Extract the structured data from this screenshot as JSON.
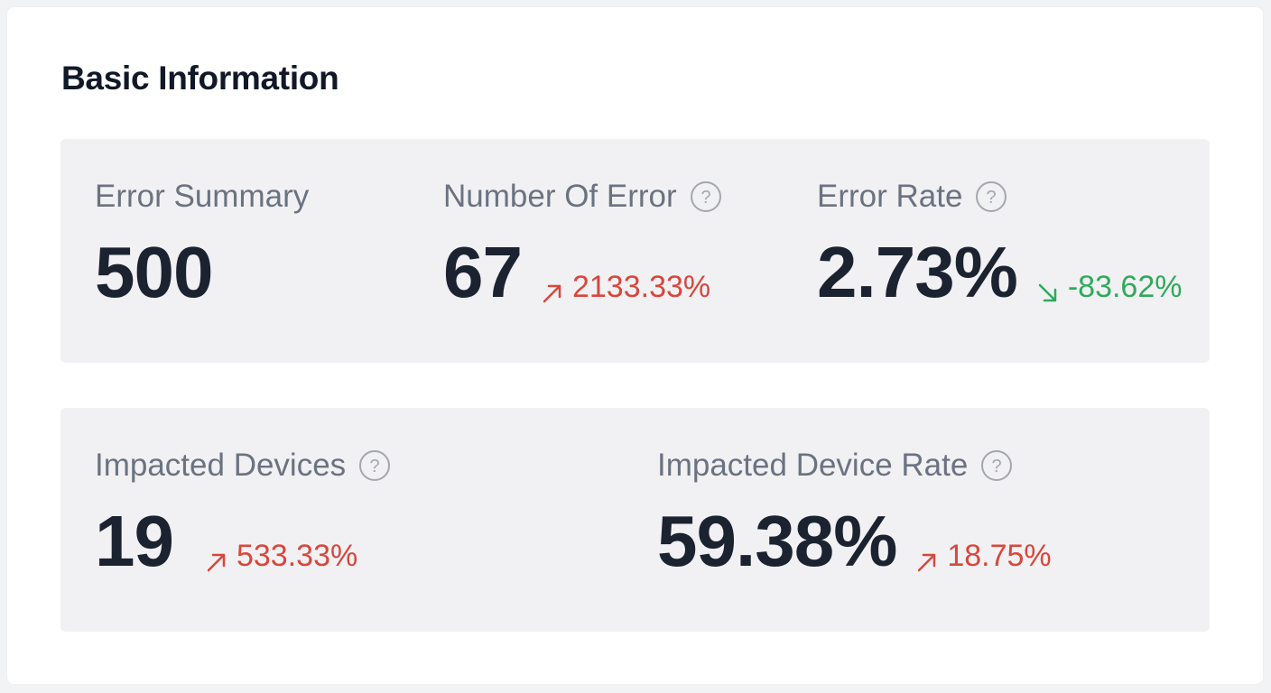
{
  "section": {
    "title": "Basic Information"
  },
  "colors": {
    "up": "#d9463b",
    "down": "#2faa5a",
    "label": "#6b7280",
    "value": "#1b2230"
  },
  "metrics": {
    "error_summary": {
      "label": "Error Summary",
      "value": "500"
    },
    "number_of_error": {
      "label": "Number Of Error",
      "value": "67",
      "trend": "2133.33%",
      "trend_direction": "up",
      "help_icon": "question-circle-icon"
    },
    "error_rate": {
      "label": "Error Rate",
      "value": "2.73%",
      "trend": "-83.62%",
      "trend_direction": "down",
      "help_icon": "question-circle-icon"
    },
    "impacted_devices": {
      "label": "Impacted Devices",
      "value": "19",
      "trend": "533.33%",
      "trend_direction": "up",
      "help_icon": "question-circle-icon"
    },
    "impacted_device_rate": {
      "label": "Impacted Device Rate",
      "value": "59.38%",
      "trend": "18.75%",
      "trend_direction": "up",
      "help_icon": "question-circle-icon"
    }
  }
}
